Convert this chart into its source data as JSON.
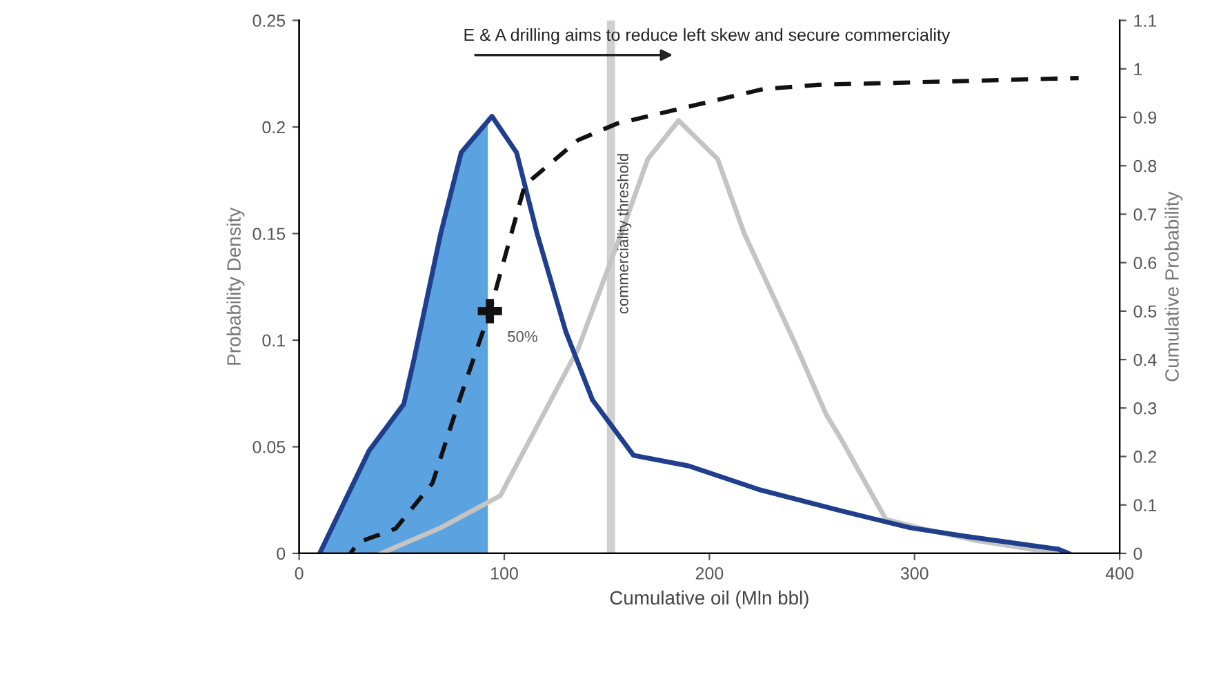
{
  "chart_data": {
    "type": "line",
    "xlabel": "Cumulative oil (Mln bbl)",
    "ylabel": "Probability Density",
    "y2label": "Cumulative Probability",
    "xlim": [
      0,
      400
    ],
    "xticks": [
      0,
      100,
      200,
      300,
      400
    ],
    "ylim": [
      0,
      0.25
    ],
    "yticks": [
      0,
      0.05,
      0.1,
      0.15,
      0.2,
      0.25
    ],
    "y2lim": [
      0,
      1.1
    ],
    "y2ticks": [
      0,
      0.1,
      0.2,
      0.3,
      0.4,
      0.5,
      0.6,
      0.7,
      0.8,
      0.9,
      1,
      1.1
    ],
    "grid": false,
    "series": [
      {
        "type": "area",
        "color": "#5ba3e0",
        "x": [
          10,
          34,
          51,
          56,
          69,
          79,
          92
        ],
        "values": [
          0,
          0.048,
          0.07,
          0.091,
          0.15,
          0.188,
          0.204
        ]
      },
      {
        "color": "#c4c4c4",
        "x": [
          40,
          69,
          98,
          136,
          157,
          170,
          185,
          204,
          217,
          242,
          257,
          264,
          286,
          302,
          330,
          370
        ],
        "values": [
          0,
          0.012,
          0.027,
          0.096,
          0.15,
          0.185,
          0.203,
          0.185,
          0.15,
          0.098,
          0.065,
          0.054,
          0.016,
          0.012,
          0.006,
          0
        ]
      },
      {
        "color": "#1f3e8c",
        "x": [
          10,
          34,
          51,
          56,
          69,
          79,
          94,
          106,
          116,
          130,
          143,
          163,
          190,
          224,
          264,
          298,
          325,
          370,
          375
        ],
        "values": [
          0,
          0.048,
          0.07,
          0.091,
          0.15,
          0.188,
          0.205,
          0.188,
          0.15,
          0.104,
          0.072,
          0.046,
          0.041,
          0.03,
          0.02,
          0.012,
          0.008,
          0.002,
          0
        ]
      },
      {
        "axis": "y2",
        "color": "#111111",
        "line_style": "dashed",
        "x": [
          25,
          29,
          47,
          65,
          78,
          93,
          110,
          136,
          155,
          226,
          253,
          380
        ],
        "values": [
          0,
          0.023,
          0.051,
          0.145,
          0.315,
          0.5,
          0.76,
          0.853,
          0.887,
          0.958,
          0.967,
          0.981
        ]
      },
      {
        "type": "scatter",
        "axis": "y2",
        "name": "50%",
        "color": "#111111",
        "marker": "cross",
        "x": [
          93
        ],
        "values": [
          0.5
        ]
      }
    ],
    "bands": [
      {
        "axis": "x",
        "from": 150,
        "to": 154,
        "label": "commerciality threshold",
        "color": "#d0d0d0"
      }
    ],
    "annotations": [
      "E & A drilling aims to reduce left skew and secure commerciality"
    ]
  }
}
